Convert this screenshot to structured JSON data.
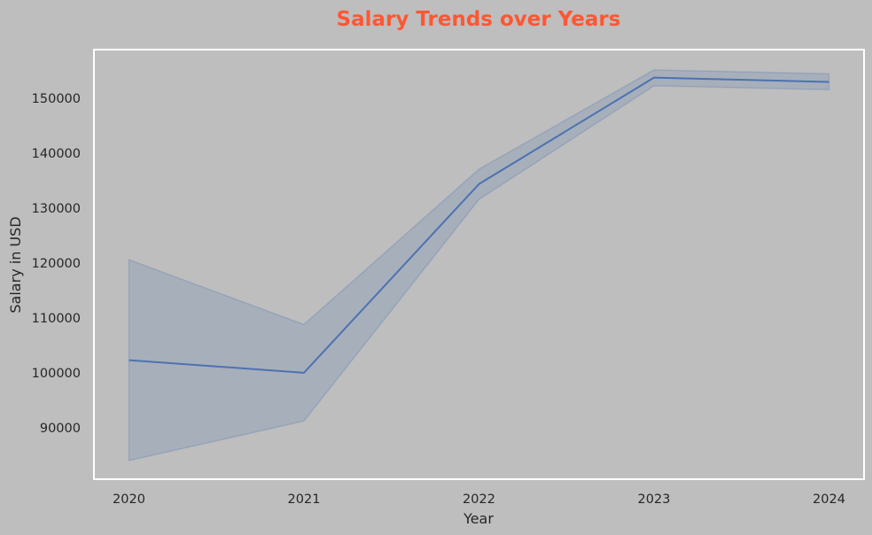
{
  "chart_data": {
    "type": "line",
    "title": "Salary Trends over Years",
    "xlabel": "Year",
    "ylabel": "Salary in USD",
    "x": [
      2020,
      2021,
      2022,
      2023,
      2024
    ],
    "x_tick_labels": [
      "2020",
      "2021",
      "2022",
      "2023",
      "2024"
    ],
    "y_tick_values": [
      90000,
      100000,
      110000,
      120000,
      130000,
      140000,
      150000
    ],
    "y_tick_labels": [
      "90000",
      "100000",
      "110000",
      "120000",
      "130000",
      "140000",
      "150000"
    ],
    "series": [
      {
        "values": [
          102300,
          100000,
          134400,
          153800,
          153000
        ],
        "ci_lower": [
          84000,
          91200,
          131600,
          152300,
          151600
        ],
        "ci_upper": [
          120600,
          108800,
          137100,
          155200,
          154500
        ]
      }
    ],
    "xlim": [
      2019.8,
      2024.2
    ],
    "ylim": [
      80600,
      158900
    ],
    "grid": false,
    "legend": false
  },
  "colors": {
    "background": "#bebebe",
    "plot_border": "#ffffff",
    "title": "#ff5733",
    "line": "#4c72b0",
    "band": "#4c72b0",
    "text": "#262626"
  }
}
